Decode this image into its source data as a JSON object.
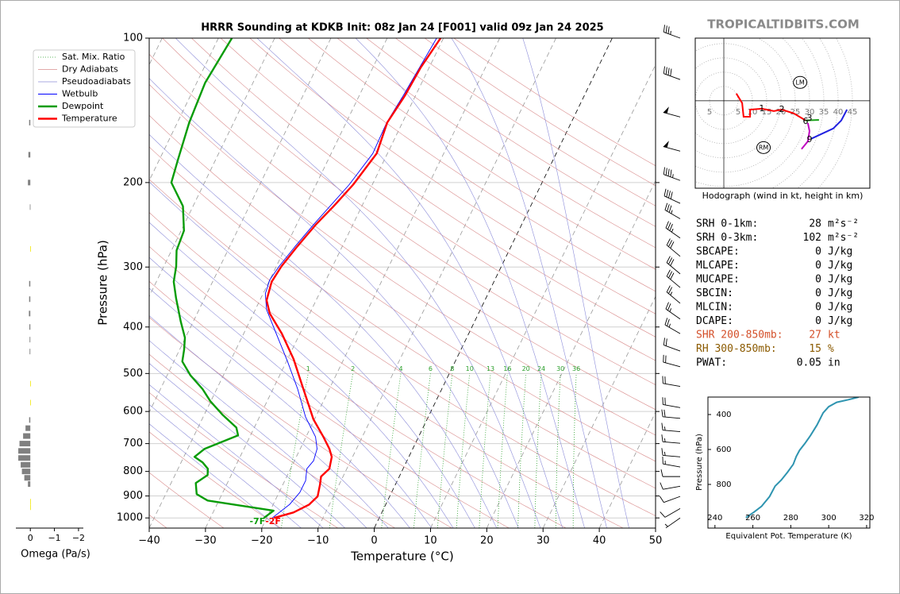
{
  "header": {
    "site": "TROPICALTIDBITS.COM"
  },
  "parameters": [
    {
      "label": "SRH 0-1km:",
      "value": 28,
      "unit": "m²s⁻²"
    },
    {
      "label": "SRH 0-3km:",
      "value": 102,
      "unit": "m²s⁻²"
    },
    {
      "label": "SBCAPE:",
      "value": 0,
      "unit": "J/kg"
    },
    {
      "label": "MLCAPE:",
      "value": 0,
      "unit": "J/kg"
    },
    {
      "label": "MUCAPE:",
      "value": 0,
      "unit": "J/kg"
    },
    {
      "label": "SBCIN:",
      "value": 0,
      "unit": "J/kg"
    },
    {
      "label": "MLCIN:",
      "value": 0,
      "unit": "J/kg"
    },
    {
      "label": "DCAPE:",
      "value": 0,
      "unit": "J/kg"
    },
    {
      "label": "SHR 200-850mb:",
      "value": 27,
      "unit": "kt",
      "color": "#d4502a"
    },
    {
      "label": "RH 300-850mb:",
      "value": 15,
      "unit": "%",
      "color": "#8b5a00"
    },
    {
      "label": "PWAT:",
      "value": 0.05,
      "unit": "in"
    }
  ],
  "chart_data": [
    {
      "type": "skewt",
      "title": "HRRR Sounding at KDKB Init: 08z Jan 24 [F001] valid 09z Jan 24 2025",
      "xlabel": "Temperature (°C)",
      "ylabel": "Pressure (hPa)",
      "xlim": [
        -40,
        50
      ],
      "ylim": [
        1050,
        100
      ],
      "ylog": true,
      "legend": "upper left",
      "xticks": [
        {
          "value": -40,
          "label": "−40"
        },
        {
          "value": -30,
          "label": "−30"
        },
        {
          "value": -20,
          "label": "−20"
        },
        {
          "value": -10,
          "label": "−10"
        },
        0,
        10,
        20,
        30,
        40,
        50
      ],
      "yticks": [
        100,
        200,
        300,
        400,
        500,
        600,
        700,
        800,
        900,
        1000
      ],
      "mixing_ratio_labels": [
        1,
        2,
        4,
        6,
        8,
        10,
        13,
        16,
        20,
        24,
        30,
        36
      ],
      "reference_lines": [
        {
          "name": "Sat. Mix. Ratio",
          "color": "#2ca02c"
        },
        {
          "name": "Dry Adiabats",
          "color": "#d98c8c"
        },
        {
          "name": "Pseudoadiabats",
          "color": "#8c8cd9"
        }
      ],
      "series": [
        {
          "name": "Wetbulb",
          "color": "#0000ff",
          "pressure": [
            1000,
            938,
            885,
            836,
            790,
            760,
            718,
            678,
            616,
            539,
            472,
            413,
            368,
            341,
            319,
            299,
            272,
            245,
            202,
            174,
            150,
            132,
            100
          ],
          "values": [
            -19.0,
            -17.1,
            -16.3,
            -16.3,
            -17.1,
            -16.6,
            -17.0,
            -18.3,
            -21.8,
            -25.6,
            -29.8,
            -34.2,
            -38.0,
            -39.6,
            -40.0,
            -39.5,
            -38.4,
            -37.0,
            -34.1,
            -32.6,
            -32.8,
            -32.2,
            -31.2
          ]
        },
        {
          "name": "Dewpoint",
          "color": "#089c08",
          "surface_label": "-7F",
          "pressure": [
            1000,
            966,
            920,
            892,
            846,
            814,
            790,
            766,
            746,
            718,
            673,
            648,
            609,
            571,
            539,
            504,
            472,
            446,
            421,
            390,
            348,
            322,
            299,
            277,
            252,
            224,
            200,
            179,
            150,
            124,
            100
          ],
          "values": [
            -20.5,
            -19.4,
            -32.0,
            -34.5,
            -35.6,
            -34.2,
            -34.7,
            -36.2,
            -38.1,
            -37.0,
            -32.2,
            -33.2,
            -36.8,
            -40.1,
            -42.5,
            -45.9,
            -48.5,
            -49.2,
            -50.1,
            -52.2,
            -55.1,
            -56.9,
            -57.8,
            -59.1,
            -59.5,
            -61.8,
            -65.9,
            -66.7,
            -67.9,
            -68.5,
            -67.6
          ]
        },
        {
          "name": "Temperature",
          "color": "#ff0000",
          "surface_label": "-2F",
          "pressure": [
            1000,
            974,
            938,
            902,
            852,
            820,
            790,
            746,
            718,
            678,
            623,
            523,
            467,
            413,
            375,
            352,
            322,
            299,
            274,
            245,
            224,
            202,
            174,
            150,
            132,
            115,
            100
          ],
          "values": [
            -18.7,
            -15.7,
            -13.6,
            -12.8,
            -13.4,
            -13.9,
            -13.1,
            -13.7,
            -14.8,
            -16.9,
            -20.2,
            -25.5,
            -28.9,
            -33.2,
            -37.1,
            -38.8,
            -39.5,
            -39.1,
            -38.1,
            -36.6,
            -35.0,
            -33.4,
            -31.9,
            -32.7,
            -31.9,
            -31.5,
            -30.5
          ]
        }
      ],
      "wind_barbs": {
        "pressure": [
          100,
          122,
          146,
          172,
          198,
          221,
          238,
          261,
          285,
          310,
          331,
          357,
          385,
          413,
          449,
          484,
          532,
          589,
          620,
          661,
          699,
          746,
          783,
          820,
          859,
          902,
          956,
          1000
        ],
        "speed": [
          35,
          40,
          50,
          50,
          45,
          40,
          35,
          35,
          30,
          30,
          30,
          25,
          25,
          25,
          20,
          20,
          20,
          20,
          20,
          15,
          15,
          15,
          15,
          10,
          10,
          10,
          10,
          5
        ],
        "direction": [
          290,
          290,
          285,
          285,
          290,
          295,
          300,
          305,
          310,
          310,
          310,
          310,
          305,
          300,
          290,
          285,
          280,
          280,
          275,
          275,
          275,
          275,
          280,
          270,
          260,
          250,
          240,
          235
        ]
      }
    },
    {
      "type": "barh",
      "xlabel": "Omega (Pa/s)",
      "xlim": [
        0.6,
        -2.2
      ],
      "ylim": [
        1050,
        100
      ],
      "ylog": true,
      "xticks": [
        0,
        {
          "value": -1,
          "label": "−1"
        },
        {
          "value": -2,
          "label": "−2"
        }
      ],
      "color": "#808080",
      "negative_color": "#f2e600",
      "pressure": [
        150,
        175,
        200,
        225,
        275,
        325,
        350,
        375,
        400,
        425,
        450,
        525,
        575,
        625,
        650,
        675,
        700,
        725,
        750,
        775,
        800,
        825,
        850,
        925,
        950
      ],
      "values": [
        0.05,
        0.08,
        0.1,
        0.02,
        -0.01,
        0.05,
        0.05,
        0.06,
        0.04,
        0.03,
        0.03,
        -0.01,
        -0.01,
        0.05,
        0.2,
        0.3,
        0.45,
        0.5,
        0.5,
        0.4,
        0.35,
        0.25,
        0.1,
        -0.02,
        -0.02
      ]
    },
    {
      "type": "hodograph",
      "caption": "Hodograph (wind in kt, height in km)",
      "xlim": [
        -10,
        51.1
      ],
      "ylim": [
        -30.6,
        21.9
      ],
      "rings": [
        5,
        10,
        15,
        20,
        25,
        30,
        35,
        40,
        45
      ],
      "segments": [
        {
          "color": "#ff0000",
          "u": [
            4.4,
            6.4,
            6.9,
            9.2,
            9.2,
            13.3,
            17.5,
            20.3,
            24.4,
            27.8,
            28.6
          ],
          "v": [
            2.5,
            -0.8,
            -5.6,
            -5.6,
            -3.1,
            -2.8,
            -3.6,
            -3.1,
            -4.4,
            -6.4,
            -6.9
          ]
        },
        {
          "color": "#1aa01a",
          "u": [
            28.6,
            33.3
          ],
          "v": [
            -6.9,
            -6.7
          ]
        },
        {
          "color": "#c000c0",
          "u": [
            29.4,
            30.0,
            29.4,
            27.2
          ],
          "v": [
            -7.8,
            -10.6,
            -14.2,
            -16.9
          ]
        },
        {
          "color": "#2020e0",
          "u": [
            30.6,
            38.3,
            41.1,
            43.1
          ],
          "v": [
            -13.3,
            -9.7,
            -6.9,
            -3.1
          ]
        }
      ],
      "height_labels": [
        {
          "label": "1",
          "u": 13.3,
          "v": -2.8
        },
        {
          "label": "2",
          "u": 20.3,
          "v": -3.1
        },
        {
          "label": "3",
          "u": 30.0,
          "v": -6.1
        },
        {
          "label": "6",
          "u": 28.6,
          "v": -7.2
        },
        {
          "label": "9",
          "u": 30.0,
          "v": -13.6
        }
      ],
      "storm_motion": [
        {
          "label": "LM",
          "u": 26.7,
          "v": 6.4
        },
        {
          "label": "RM",
          "u": 13.9,
          "v": -16.4
        }
      ]
    },
    {
      "type": "line",
      "xlabel": "Equivalent Pot. Temperature (K)",
      "ylabel": "Pressure (hPa)",
      "xlim": [
        236.3,
        321.7
      ],
      "ylim": [
        1050,
        300
      ],
      "color": "#2e94b0",
      "xticks": [
        240,
        260,
        280,
        300,
        320
      ],
      "yticks": [
        400,
        600,
        800
      ],
      "x": [
        256.3,
        260.4,
        264.6,
        268.8,
        271.7,
        275,
        278.3,
        281.3,
        282.9,
        284.6,
        287.5,
        290.4,
        293.8,
        297.1,
        300,
        304.2,
        310.4,
        315.8
      ],
      "values": [
        990,
        960,
        925,
        870,
        810,
        775,
        730,
        685,
        640,
        605,
        565,
        520,
        460,
        390,
        355,
        330,
        315,
        300
      ]
    }
  ]
}
